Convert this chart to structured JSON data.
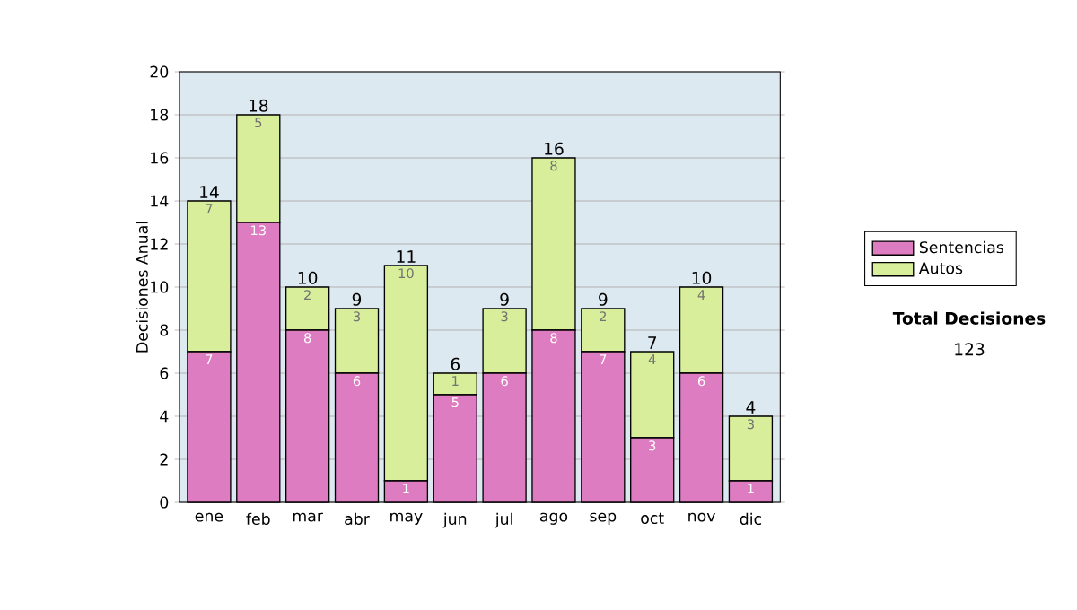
{
  "chart_data": {
    "type": "bar",
    "stacked": true,
    "ylabel": "Decisiones Anual",
    "categories": [
      "ene",
      "feb",
      "mar",
      "abr",
      "may",
      "jun",
      "jul",
      "ago",
      "sep",
      "oct",
      "nov",
      "dic"
    ],
    "series": [
      {
        "name": "Sentencias",
        "color": "#dd7cc0",
        "values": [
          7,
          13,
          8,
          6,
          1,
          5,
          6,
          8,
          7,
          3,
          6,
          1
        ],
        "value_labels": [
          "7",
          "13",
          "8",
          "6",
          "1",
          "5",
          "6",
          "8",
          "7",
          "3",
          "6",
          "1"
        ]
      },
      {
        "name": "Autos",
        "color": "#d9ee9a",
        "values": [
          7,
          5,
          2,
          3,
          10,
          1,
          3,
          8,
          2,
          4,
          4,
          3
        ],
        "value_labels": [
          "7",
          "5",
          "2",
          "3",
          "10",
          "1",
          "3",
          "8",
          "2",
          "4",
          "4",
          "3"
        ]
      }
    ],
    "totals": [
      "14",
      "18",
      "10",
      "9",
      "11",
      "6",
      "9",
      "16",
      "9",
      "7",
      "10",
      "4"
    ],
    "ylim": [
      0,
      20
    ],
    "yticks": [
      0,
      2,
      4,
      6,
      8,
      10,
      12,
      14,
      16,
      18,
      20
    ],
    "grid": "y",
    "legend": "right",
    "annotations": [
      "Total Decisiones",
      "123"
    ]
  }
}
